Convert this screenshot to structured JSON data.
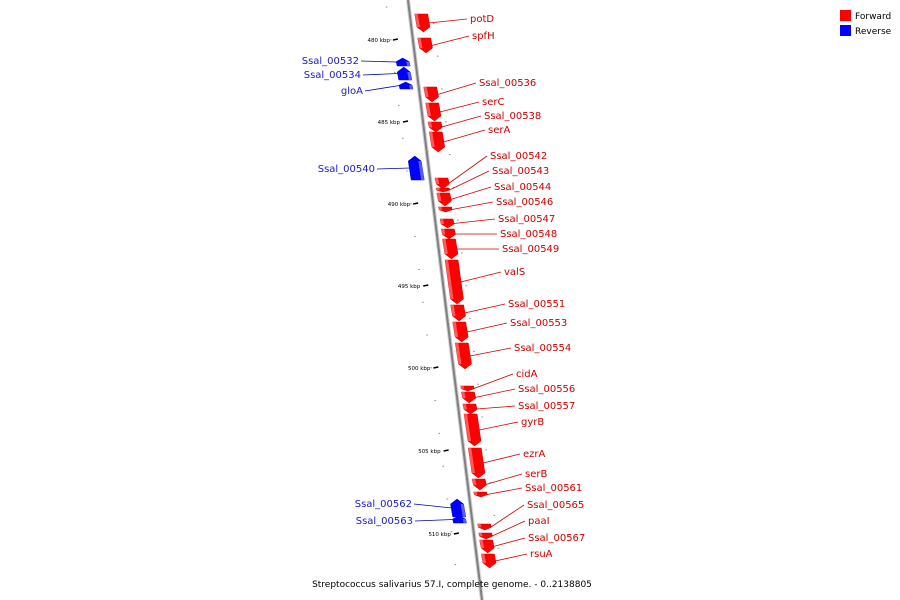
{
  "caption": "Streptococcus salivarius 57.I, complete genome. - 0..2138805",
  "legend": [
    {
      "label": "Forward",
      "color": "#ff0000"
    },
    {
      "label": "Reverse",
      "color": "#0000ff"
    }
  ],
  "ticks": [
    "480 kbp",
    "485 kbp",
    "490 kbp",
    "495 kbp",
    "500 kbp",
    "505 kbp",
    "510 kbp"
  ],
  "genes": [
    {
      "name": "potD",
      "strand": "forward"
    },
    {
      "name": "spfH",
      "strand": "forward"
    },
    {
      "name": "Ssal_00532",
      "strand": "reverse"
    },
    {
      "name": "Ssal_00534",
      "strand": "reverse"
    },
    {
      "name": "gloA",
      "strand": "reverse"
    },
    {
      "name": "Ssal_00536",
      "strand": "forward"
    },
    {
      "name": "serC",
      "strand": "forward"
    },
    {
      "name": "Ssal_00538",
      "strand": "forward"
    },
    {
      "name": "serA",
      "strand": "forward"
    },
    {
      "name": "Ssal_00540",
      "strand": "reverse"
    },
    {
      "name": "Ssal_00542",
      "strand": "forward"
    },
    {
      "name": "Ssal_00543",
      "strand": "forward"
    },
    {
      "name": "Ssal_00544",
      "strand": "forward"
    },
    {
      "name": "Ssal_00546",
      "strand": "forward"
    },
    {
      "name": "Ssal_00547",
      "strand": "forward"
    },
    {
      "name": "Ssal_00548",
      "strand": "forward"
    },
    {
      "name": "Ssal_00549",
      "strand": "forward"
    },
    {
      "name": "valS",
      "strand": "forward"
    },
    {
      "name": "Ssal_00551",
      "strand": "forward"
    },
    {
      "name": "Ssal_00553",
      "strand": "forward"
    },
    {
      "name": "Ssal_00554",
      "strand": "forward"
    },
    {
      "name": "cidA",
      "strand": "forward"
    },
    {
      "name": "Ssal_00556",
      "strand": "forward"
    },
    {
      "name": "Ssal_00557",
      "strand": "forward"
    },
    {
      "name": "gyrB",
      "strand": "forward"
    },
    {
      "name": "ezrA",
      "strand": "forward"
    },
    {
      "name": "serB",
      "strand": "forward"
    },
    {
      "name": "Ssal_00561",
      "strand": "forward"
    },
    {
      "name": "Ssal_00562",
      "strand": "reverse"
    },
    {
      "name": "Ssal_00563",
      "strand": "reverse"
    },
    {
      "name": "Ssal_00565",
      "strand": "forward"
    },
    {
      "name": "paaI",
      "strand": "forward"
    },
    {
      "name": "Ssal_00567",
      "strand": "forward"
    },
    {
      "name": "rsuA",
      "strand": "forward"
    }
  ]
}
